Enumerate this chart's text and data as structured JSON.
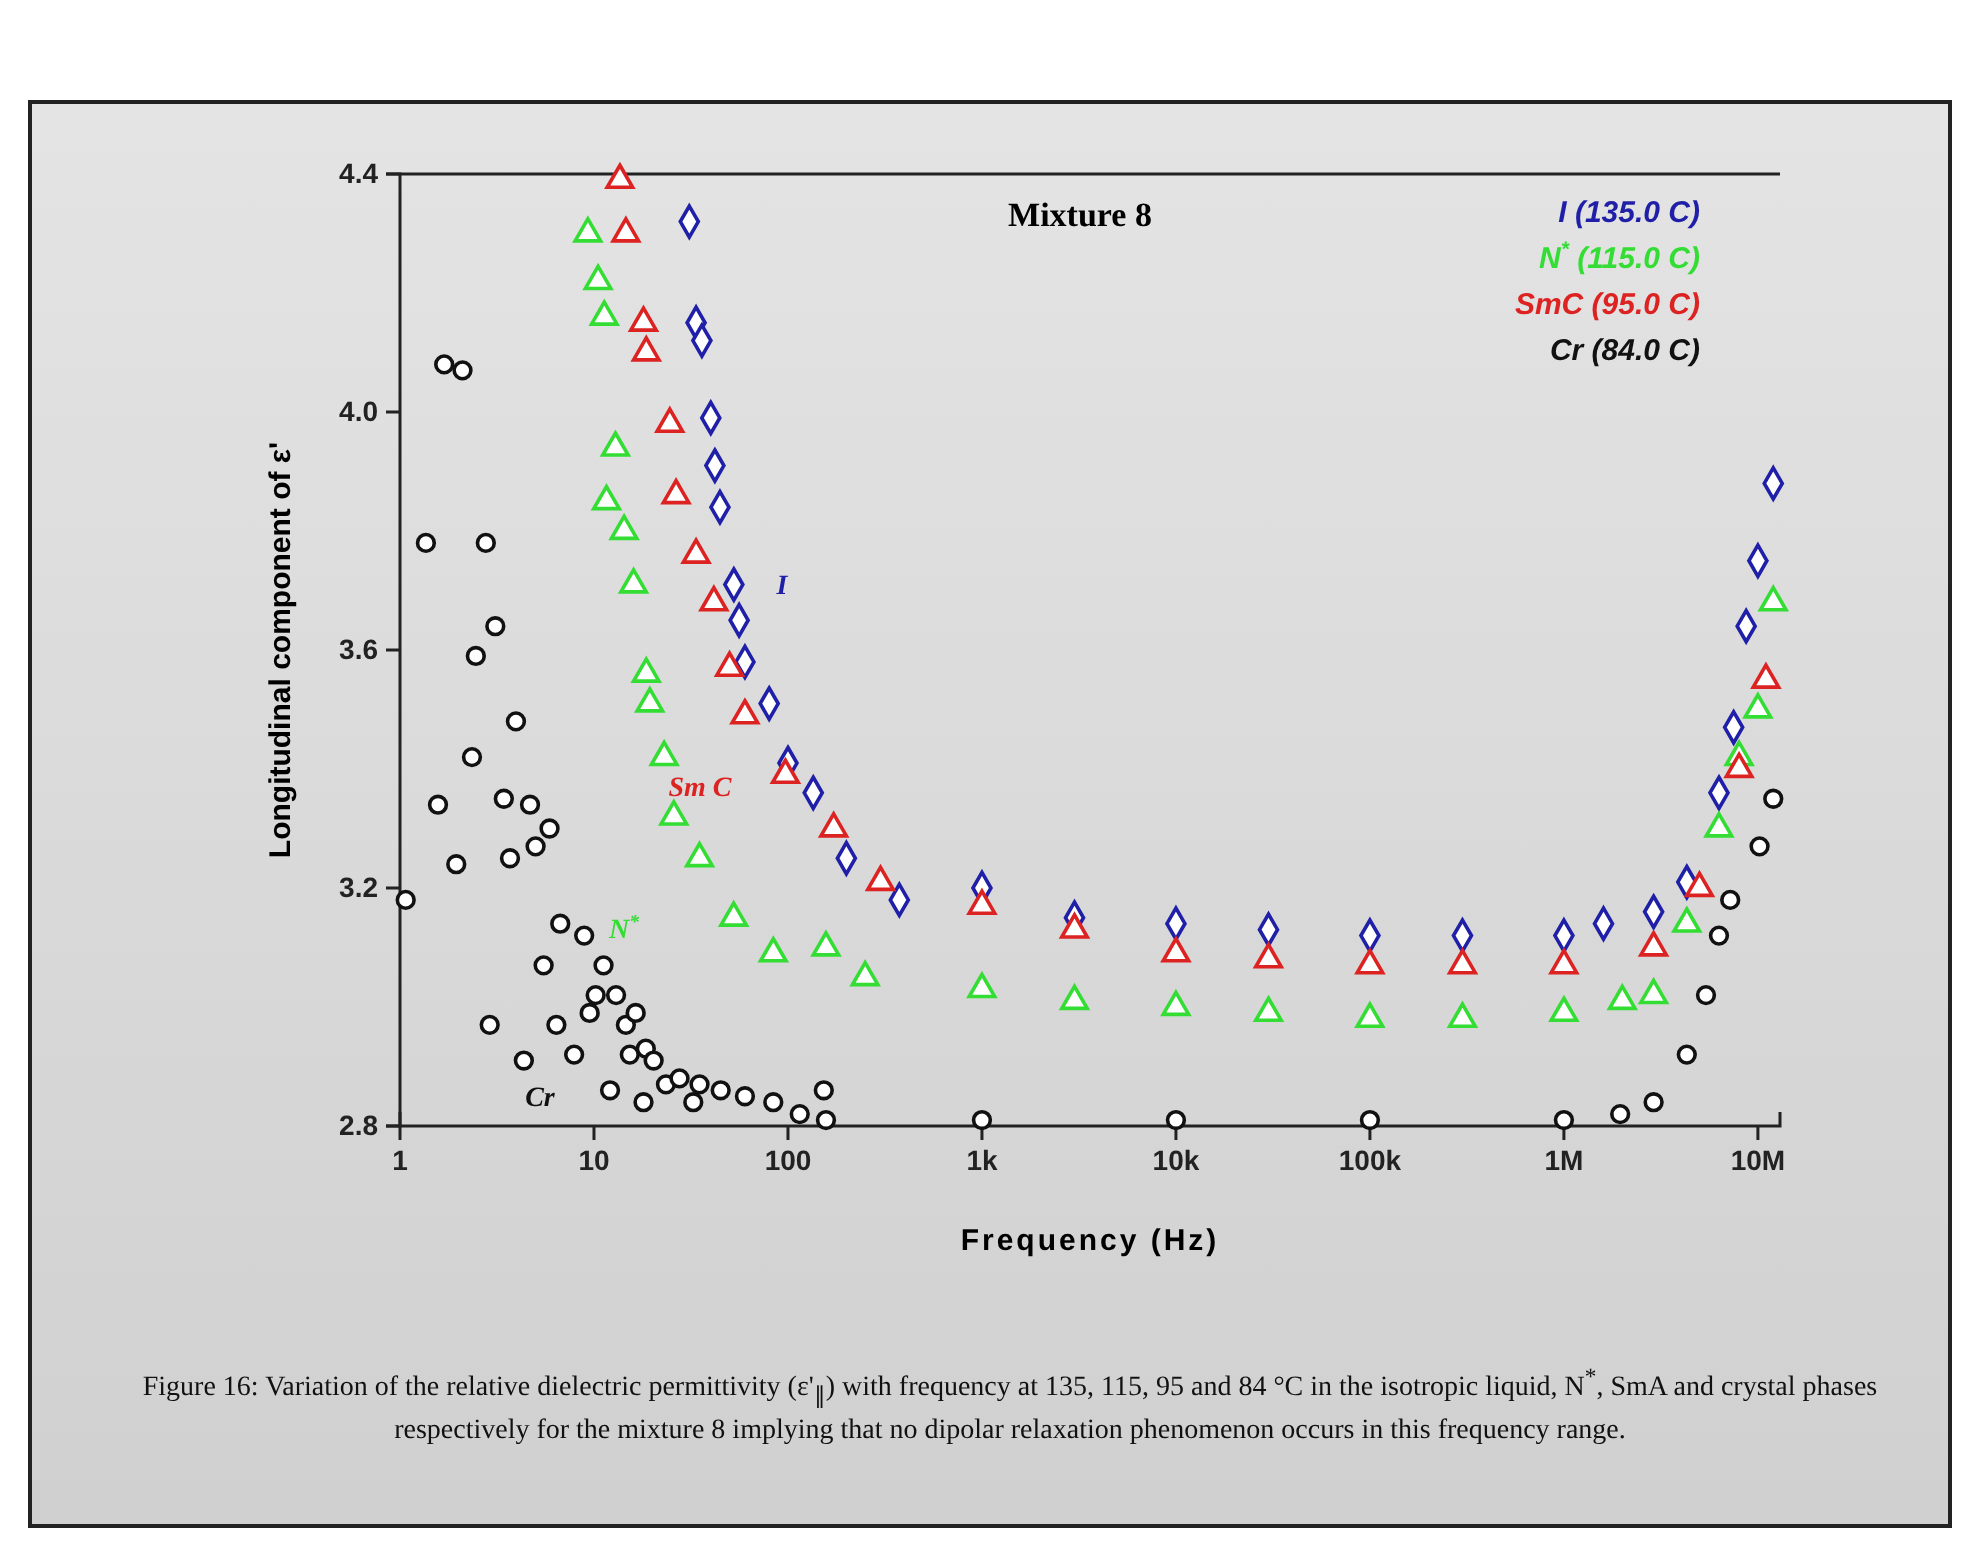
{
  "chart_data": {
    "type": "scatter",
    "title": "Mixture 8",
    "xlabel": "Frequency (Hz)",
    "ylabel": "Longitudinal component of ε'",
    "log": "x",
    "legend": "top right",
    "xlim": [
      1,
      13000000
    ],
    "ylim": [
      2.8,
      4.4
    ],
    "xticks": [
      {
        "value": 1,
        "label": "1"
      },
      {
        "value": 10,
        "label": "10"
      },
      {
        "value": 100,
        "label": "100"
      },
      {
        "value": 1000,
        "label": "1k"
      },
      {
        "value": 10000,
        "label": "10k"
      },
      {
        "value": 100000,
        "label": "100k"
      },
      {
        "value": 1000000,
        "label": "1M"
      },
      {
        "value": 10000000,
        "label": "10M"
      }
    ],
    "yticks": [
      2.8,
      3.2,
      3.6,
      {
        "value": 4,
        "label": "4.0"
      },
      4.4
    ],
    "series": [
      {
        "name": "I (135.0 C)",
        "color": "#1f1fa8",
        "marker": "diamond",
        "x": [
          31,
          33.6,
          36,
          40,
          42,
          44.6,
          52.6,
          56,
          60,
          80,
          100,
          135,
          200,
          375,
          1000,
          3000,
          10000,
          30000,
          100000,
          300000,
          1000000,
          1600000,
          2900000,
          4300000,
          6300000,
          7500000,
          8700000,
          10000000,
          12000000
        ],
        "values": [
          4.32,
          4.15,
          4.12,
          3.99,
          3.91,
          3.84,
          3.71,
          3.65,
          3.58,
          3.51,
          3.41,
          3.36,
          3.25,
          3.18,
          3.2,
          3.15,
          3.14,
          3.13,
          3.12,
          3.12,
          3.12,
          3.14,
          3.16,
          3.21,
          3.36,
          3.47,
          3.64,
          3.75,
          3.88
        ]
      },
      {
        "name": "N$^{*}$ (115.0 C)",
        "color": "#33dd33",
        "marker": "triangle",
        "x": [
          9.3,
          10.5,
          11.3,
          12.9,
          11.6,
          14.3,
          16,
          18.6,
          19.4,
          23,
          25.8,
          35,
          52.5,
          84,
          157,
          250,
          1000,
          3000,
          10000,
          30000,
          100000,
          300000,
          1000000,
          2000000,
          2900000,
          4300000,
          6300000,
          8000000,
          10000000,
          12000000
        ],
        "values": [
          4.3,
          4.22,
          4.16,
          3.94,
          3.85,
          3.8,
          3.71,
          3.56,
          3.51,
          3.42,
          3.32,
          3.25,
          3.15,
          3.09,
          3.1,
          3.05,
          3.03,
          3.01,
          3,
          2.99,
          2.98,
          2.98,
          2.99,
          3.01,
          3.02,
          3.14,
          3.3,
          3.42,
          3.5,
          3.68
        ]
      },
      {
        "name": "SmC (95.0 C)",
        "color": "#dd2222",
        "marker": "triangle",
        "x": [
          13.6,
          14.6,
          18,
          18.6,
          24.6,
          26.5,
          33.6,
          41.5,
          50,
          60,
          97,
          172,
          300,
          1000,
          3000,
          10000,
          30000,
          100000,
          300000,
          1000000,
          2900000,
          5000000,
          8000000,
          11000000
        ],
        "values": [
          4.39,
          4.3,
          4.15,
          4.1,
          3.98,
          3.86,
          3.76,
          3.68,
          3.57,
          3.49,
          3.39,
          3.3,
          3.21,
          3.17,
          3.13,
          3.09,
          3.08,
          3.07,
          3.07,
          3.07,
          3.1,
          3.2,
          3.4,
          3.55
        ]
      },
      {
        "name": "Cr (84.0 C)",
        "color": "#111111",
        "marker": "circle",
        "x": [
          1.07,
          1.36,
          1.69,
          2.1,
          1.57,
          1.95,
          2.77,
          2.46,
          3.1,
          2.35,
          3.96,
          3.43,
          4.68,
          3.69,
          5,
          5.9,
          2.9,
          4.35,
          5.5,
          6.7,
          8.9,
          6.4,
          7.9,
          9.5,
          10.2,
          11.2,
          13,
          14.6,
          16.4,
          12.1,
          15.3,
          18.5,
          20.3,
          18,
          23.5,
          27.6,
          35,
          32.5,
          45,
          60,
          84,
          153,
          115,
          157,
          1000,
          10000,
          100000,
          1000000,
          1950000,
          2900000,
          4300000,
          5400000,
          6300000,
          7200000,
          10200000,
          12000000
        ],
        "values": [
          3.18,
          3.78,
          4.08,
          4.07,
          3.34,
          3.24,
          3.78,
          3.59,
          3.64,
          3.42,
          3.48,
          3.35,
          3.34,
          3.25,
          3.27,
          3.3,
          2.97,
          2.91,
          3.07,
          3.14,
          3.12,
          2.97,
          2.92,
          2.99,
          3.02,
          3.07,
          3.02,
          2.97,
          2.99,
          2.86,
          2.92,
          2.93,
          2.91,
          2.84,
          2.87,
          2.88,
          2.87,
          2.84,
          2.86,
          2.85,
          2.84,
          2.86,
          2.82,
          2.81,
          2.81,
          2.81,
          2.81,
          2.81,
          2.82,
          2.84,
          2.92,
          3.02,
          3.12,
          3.18,
          3.27,
          3.35
        ]
      }
    ],
    "annotations": [
      "I",
      "N$^{*}$",
      "Sm C",
      "Cr",
      "Figure 16: Variation of the relative dielectric permittivity (ε'$_{∥}$) with frequency at 135, 115, 95 and 84 °C in the isotropic liquid, N$^{*}$, SmA and crystal phases respectively for the mixture 8 implying that no dipolar relaxation phenomenon occurs in this frequency range."
    ]
  }
}
